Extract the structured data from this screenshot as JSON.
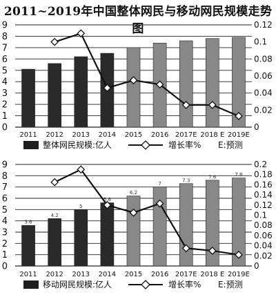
{
  "title": "2011~2019年中国整体网民与移动网民规模走势图",
  "chart_data": [
    {
      "type": "bar",
      "categories": [
        "2011",
        "2012",
        "2013",
        "2014",
        "2015",
        "2016",
        "2017E",
        "2018 E",
        "2019E"
      ],
      "series": [
        {
          "name": "整体网民规模:亿人",
          "kind": "bar",
          "axis": "left",
          "values": [
            5.1,
            5.6,
            6.2,
            6.5,
            7.0,
            7.4,
            7.6,
            7.8,
            7.9
          ],
          "colors": [
            "#2a2a2a",
            "#2a2a2a",
            "#2a2a2a",
            "#2a2a2a",
            "#888888",
            "#888888",
            "#888888",
            "#888888",
            "#888888"
          ]
        },
        {
          "name": "增长率%",
          "kind": "line",
          "axis": "right",
          "marker": "diamond",
          "values": [
            null,
            0.1,
            0.11,
            0.046,
            0.055,
            0.05,
            0.026,
            0.026,
            0.013
          ]
        }
      ],
      "ylim": [
        0,
        9
      ],
      "yticks": [
        "0",
        "1",
        "2",
        "3",
        "4",
        "5",
        "6",
        "7",
        "8",
        "9"
      ],
      "y2lim": [
        0,
        0.12
      ],
      "y2ticks": [
        "0",
        "0.02",
        "0.04",
        "0.06",
        "0.08",
        "0.1",
        "0.12"
      ],
      "grid": "horizontal",
      "legend": {
        "items": [
          "整体网民规模:亿人",
          "增长率%",
          "E:预测"
        ],
        "placement": "bottom"
      }
    },
    {
      "type": "bar",
      "categories": [
        "2011",
        "2012",
        "2013",
        "2014",
        "2015",
        "2016",
        "2017E",
        "2018 E",
        "2019E"
      ],
      "series": [
        {
          "name": "移动网民规模:亿人",
          "kind": "bar",
          "axis": "left",
          "values": [
            3.6,
            4.2,
            5,
            5.6,
            6.2,
            7,
            7.3,
            7.6,
            7.8
          ],
          "labels": [
            "3.6",
            "4.2",
            "5",
            "5.6",
            "6.2",
            "7",
            "7.3",
            "7.6",
            "7.8"
          ],
          "colors": [
            "#2a2a2a",
            "#2a2a2a",
            "#2a2a2a",
            "#2a2a2a",
            "#888888",
            "#888888",
            "#888888",
            "#888888",
            "#888888"
          ]
        },
        {
          "name": "增长率%",
          "kind": "line",
          "axis": "right",
          "marker": "diamond",
          "values": [
            null,
            0.165,
            0.19,
            0.12,
            0.105,
            0.123,
            0.035,
            0.03,
            0.022
          ]
        }
      ],
      "ylim": [
        0,
        9
      ],
      "yticks": [
        "0",
        "1",
        "2",
        "3",
        "4",
        "5",
        "6",
        "7",
        "8",
        "9"
      ],
      "y2lim": [
        0,
        0.2
      ],
      "y2ticks": [
        "0",
        "0.02",
        "0.04",
        "0.06",
        "0.08",
        "0.1",
        "0.12",
        "0.14",
        "0.16",
        "0.18",
        "0.2"
      ],
      "grid": "horizontal",
      "legend": {
        "items": [
          "移动网民规模:亿人",
          "增长率%",
          "E:预测"
        ],
        "placement": "bottom"
      }
    }
  ]
}
